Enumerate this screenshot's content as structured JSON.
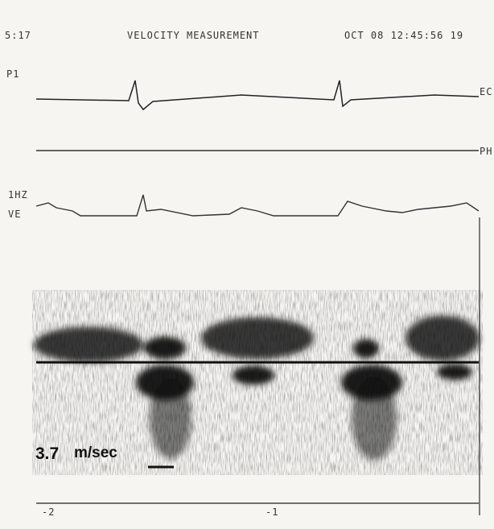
{
  "header": {
    "frame": "5:17",
    "title": "VELOCITY MEASUREMENT",
    "datetime": "OCT 08 12:45:56 19"
  },
  "left_labels": [
    "P1",
    "1HZ",
    "VE"
  ],
  "right_labels": [
    "EC",
    "PH"
  ],
  "annotation": {
    "value": "3.7",
    "unit": "m/sec"
  },
  "time_axis": [
    "-2",
    "-1"
  ]
}
